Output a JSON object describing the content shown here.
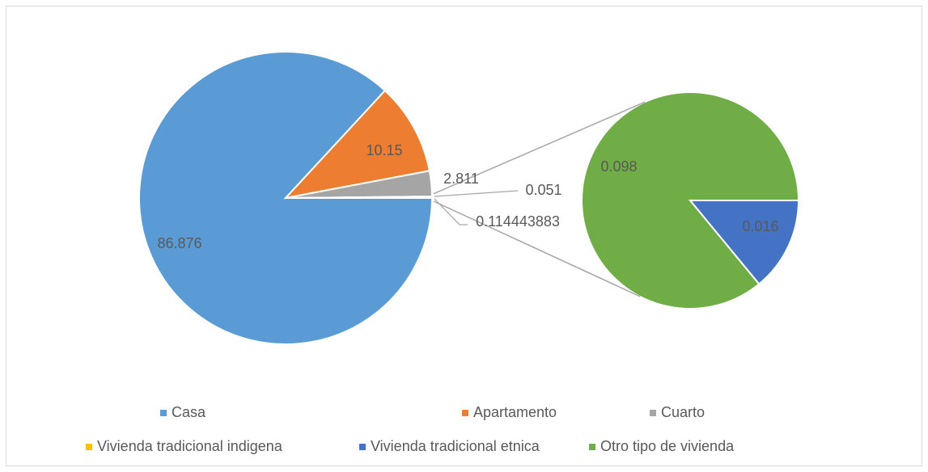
{
  "chart_data": {
    "type": "pie-of-pie",
    "categories": [
      "Casa",
      "Apartamento",
      "Cuarto",
      "Vivienda tradicional indigena",
      "Vivienda tradicional etnica",
      "Otro tipo de vivienda"
    ],
    "values": [
      86.876,
      10.15,
      2.811,
      0.051,
      0.016,
      0.098
    ],
    "colors": [
      "#5b9bd5",
      "#ed7d31",
      "#a5a5a5",
      "#ffc000",
      "#4472c4",
      "#70ad47"
    ],
    "second_plot_values": 2,
    "other_value": 0.114443883,
    "legend": "bottom"
  }
}
